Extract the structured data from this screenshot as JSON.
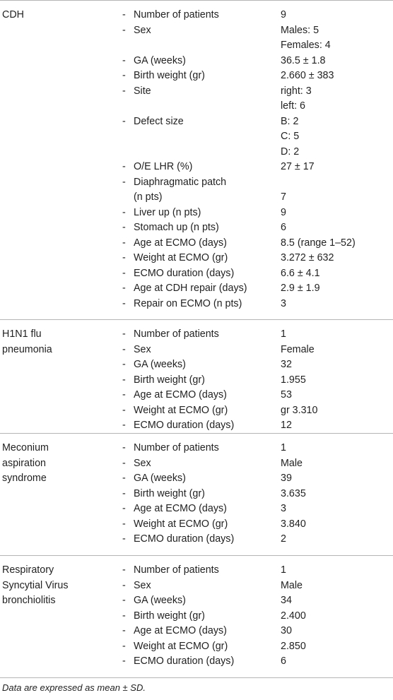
{
  "groups": [
    {
      "condition": [
        "CDH"
      ],
      "rows": [
        {
          "label": "Number of patients",
          "value": "9"
        },
        {
          "label": "Sex",
          "value": "Males: 5"
        },
        {
          "label": "",
          "value": "Females: 4",
          "cont": true
        },
        {
          "label": "GA (weeks)",
          "value": "36.5 ± 1.8"
        },
        {
          "label": "Birth weight (gr)",
          "value": "2.660 ± 383"
        },
        {
          "label": "Site",
          "value": "right: 3"
        },
        {
          "label": "",
          "value": "left: 6",
          "cont": true
        },
        {
          "label": "Defect size",
          "value": "B: 2"
        },
        {
          "label": "",
          "value": "C: 5",
          "cont": true
        },
        {
          "label": "",
          "value": "D: 2",
          "cont": true
        },
        {
          "label": "O/E LHR (%)",
          "value": "27 ± 17"
        },
        {
          "label": "Diaphragmatic patch",
          "value": ""
        },
        {
          "label": "(n pts)",
          "value": "7",
          "cont": true
        },
        {
          "label": "Liver up (n pts)",
          "value": "9"
        },
        {
          "label": "Stomach up (n pts)",
          "value": "6"
        },
        {
          "label": "Age at ECMO (days)",
          "value": "8.5 (range 1–52)"
        },
        {
          "label": "Weight at ECMO (gr)",
          "value": "3.272 ± 632"
        },
        {
          "label": "ECMO duration (days)",
          "value": "6.6 ± 4.1"
        },
        {
          "label": "Age at CDH repair (days)",
          "value": "2.9 ± 1.9"
        },
        {
          "label": "Repair on ECMO (n pts)",
          "value": "3"
        }
      ]
    },
    {
      "condition": [
        "H1N1 flu",
        "pneumonia"
      ],
      "rows": [
        {
          "label": "Number of patients",
          "value": "1"
        },
        {
          "label": "Sex",
          "value": "Female"
        },
        {
          "label": "GA (weeks)",
          "value": "32"
        },
        {
          "label": "Birth weight (gr)",
          "value": "1.955"
        },
        {
          "label": "Age at ECMO (days)",
          "value": "53"
        },
        {
          "label": "Weight at ECMO (gr)",
          "value": "gr 3.310"
        },
        {
          "label": "ECMO duration (days)",
          "value": "12"
        }
      ]
    },
    {
      "condition": [
        "Meconium",
        "aspiration",
        "syndrome"
      ],
      "rows": [
        {
          "label": "Number of patients",
          "value": "1"
        },
        {
          "label": "Sex",
          "value": "Male"
        },
        {
          "label": "GA (weeks)",
          "value": "39"
        },
        {
          "label": "Birth weight (gr)",
          "value": "3.635"
        },
        {
          "label": "Age at ECMO (days)",
          "value": "3"
        },
        {
          "label": "Weight at ECMO (gr)",
          "value": "3.840"
        },
        {
          "label": "ECMO duration (days)",
          "value": "2"
        }
      ]
    },
    {
      "condition": [
        "Respiratory",
        "Syncytial Virus",
        "bronchiolitis"
      ],
      "rows": [
        {
          "label": "Number of patients",
          "value": "1"
        },
        {
          "label": "Sex",
          "value": "Male"
        },
        {
          "label": "GA (weeks)",
          "value": "34"
        },
        {
          "label": "Birth weight (gr)",
          "value": "2.400"
        },
        {
          "label": "Age at ECMO (days)",
          "value": "30"
        },
        {
          "label": "Weight at ECMO (gr)",
          "value": "2.850"
        },
        {
          "label": "ECMO duration (days)",
          "value": "6"
        }
      ]
    }
  ],
  "dash": "-",
  "footnote": "Data are expressed as mean ± SD."
}
